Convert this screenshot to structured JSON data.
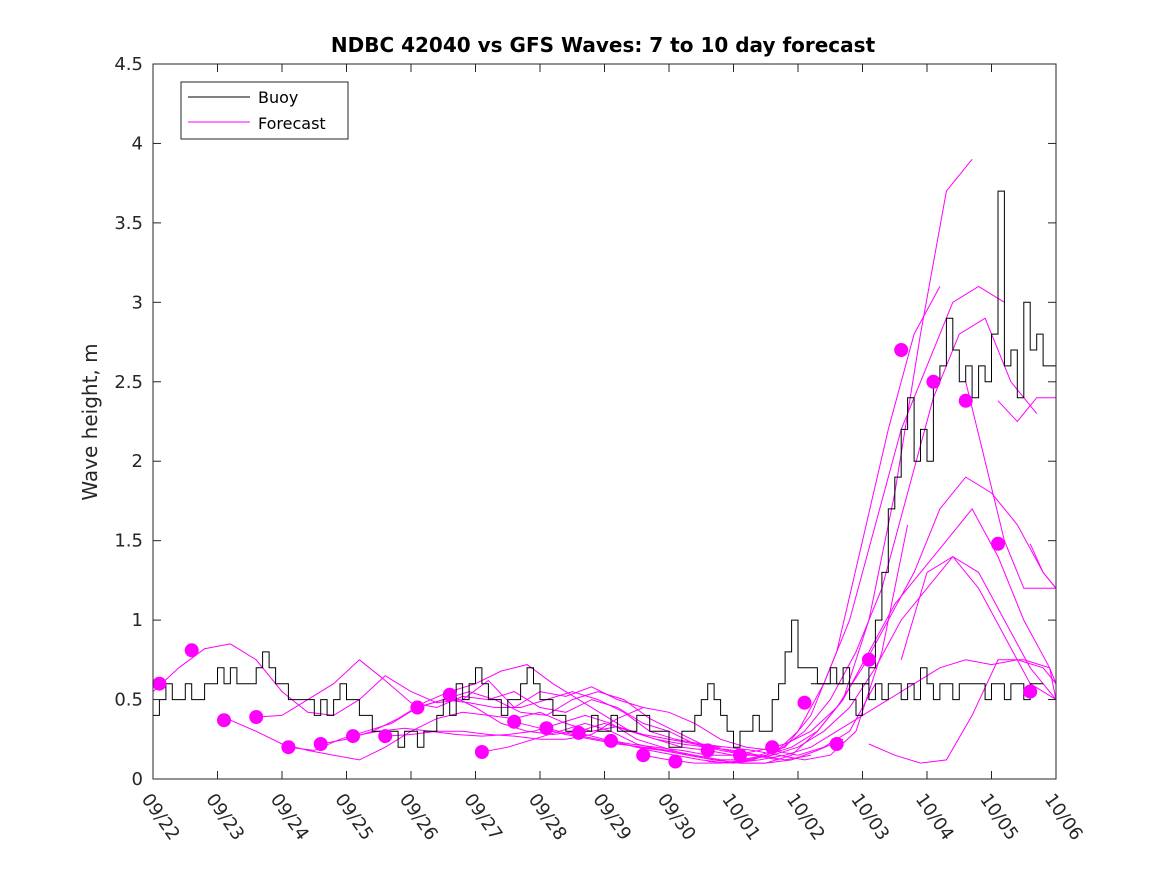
{
  "chart_data": {
    "type": "line",
    "title": "NDBC 42040 vs GFS Waves: 7 to 10 day forecast",
    "xlabel": "",
    "ylabel": "Wave height, m",
    "ylim": [
      0,
      4.5
    ],
    "xlim": [
      0,
      14
    ],
    "yticks": [
      "0",
      "0.5",
      "1",
      "1.5",
      "2",
      "2.5",
      "3",
      "3.5",
      "4",
      "4.5"
    ],
    "xticks": [
      "09/22",
      "09/23",
      "09/24",
      "09/25",
      "09/26",
      "09/27",
      "09/28",
      "09/29",
      "09/30",
      "10/01",
      "10/02",
      "10/03",
      "10/04",
      "10/05",
      "10/06"
    ],
    "x_unit_note": "x values are days after 09/22",
    "legend": {
      "placement": "top-left",
      "entries": [
        {
          "label": "Buoy",
          "color": "#000000"
        },
        {
          "label": "Forecast",
          "color": "#ff00ff"
        }
      ]
    },
    "colors": {
      "buoy": "#000000",
      "forecast": "#ff00ff"
    },
    "buoy": {
      "name": "Buoy",
      "x": [
        0,
        0.1,
        0.2,
        0.3,
        0.4,
        0.5,
        0.6,
        0.7,
        0.8,
        0.9,
        1,
        1.1,
        1.2,
        1.3,
        1.4,
        1.5,
        1.6,
        1.7,
        1.8,
        1.9,
        2,
        2.1,
        2.2,
        2.3,
        2.4,
        2.5,
        2.6,
        2.7,
        2.8,
        2.9,
        3,
        3.1,
        3.2,
        3.3,
        3.4,
        3.5,
        3.6,
        3.7,
        3.8,
        3.9,
        4,
        4.1,
        4.2,
        4.3,
        4.4,
        4.5,
        4.6,
        4.7,
        4.8,
        4.9,
        5,
        5.1,
        5.2,
        5.3,
        5.4,
        5.5,
        5.6,
        5.7,
        5.8,
        5.9,
        6,
        6.1,
        6.2,
        6.3,
        6.4,
        6.5,
        6.6,
        6.7,
        6.8,
        6.9,
        7,
        7.1,
        7.2,
        7.3,
        7.4,
        7.5,
        7.6,
        7.7,
        7.8,
        7.9,
        8,
        8.1,
        8.2,
        8.3,
        8.4,
        8.5,
        8.6,
        8.7,
        8.8,
        8.9,
        9,
        9.1,
        9.2,
        9.3,
        9.4,
        9.5,
        9.6,
        9.7,
        9.8,
        9.9,
        10,
        10.1,
        10.2,
        10.3,
        10.4,
        10.5,
        10.6,
        10.7,
        10.8,
        10.9,
        11,
        11.1,
        11.2,
        11.3,
        11.4,
        11.5,
        11.6,
        11.7,
        11.8,
        11.9,
        12,
        12.1,
        12.2,
        12.3,
        12.4,
        12.5,
        12.6,
        12.7,
        12.8,
        12.9,
        13,
        13.1,
        13.2,
        13.3,
        13.4,
        13.5,
        13.6,
        13.7,
        13.8
      ],
      "values": [
        0.4,
        0.5,
        0.6,
        0.5,
        0.5,
        0.6,
        0.5,
        0.5,
        0.6,
        0.6,
        0.7,
        0.6,
        0.7,
        0.6,
        0.6,
        0.6,
        0.7,
        0.8,
        0.7,
        0.6,
        0.6,
        0.5,
        0.5,
        0.5,
        0.5,
        0.4,
        0.5,
        0.4,
        0.5,
        0.6,
        0.5,
        0.5,
        0.4,
        0.4,
        0.3,
        0.3,
        0.3,
        0.3,
        0.2,
        0.3,
        0.3,
        0.2,
        0.3,
        0.3,
        0.4,
        0.5,
        0.4,
        0.6,
        0.5,
        0.6,
        0.7,
        0.6,
        0.5,
        0.5,
        0.4,
        0.5,
        0.5,
        0.6,
        0.7,
        0.6,
        0.5,
        0.5,
        0.4,
        0.4,
        0.3,
        0.3,
        0.3,
        0.3,
        0.4,
        0.3,
        0.3,
        0.4,
        0.3,
        0.3,
        0.3,
        0.4,
        0.4,
        0.3,
        0.3,
        0.3,
        0.2,
        0.2,
        0.3,
        0.3,
        0.4,
        0.5,
        0.6,
        0.5,
        0.4,
        0.3,
        0.2,
        0.3,
        0.3,
        0.4,
        0.3,
        0.3,
        0.5,
        0.6,
        0.8,
        1.0,
        0.7,
        0.7,
        0.7,
        0.6,
        0.6,
        0.7,
        0.6,
        0.6,
        0.5,
        0.4,
        0.6,
        0.5,
        0.6,
        0.5,
        0.6,
        0.6,
        0.5,
        0.6,
        0.5,
        0.7,
        0.6,
        0.5,
        0.6,
        0.6,
        0.5,
        0.6,
        0.6,
        0.6,
        0.6,
        0.5,
        0.6,
        0.6,
        0.5,
        0.6,
        0.6,
        0.5,
        0.6,
        0.6,
        0.6
      ]
    },
    "buoy_tail": {
      "x": [
        10.2,
        10.3,
        10.4,
        10.5,
        10.6,
        10.7,
        10.8,
        10.9,
        11.0,
        11.1,
        11.2,
        11.3,
        11.4,
        11.5,
        11.6,
        11.7,
        11.8,
        11.9,
        12.0,
        12.1,
        12.2,
        12.3,
        12.4,
        12.5,
        12.6,
        12.7,
        12.8,
        12.9,
        13.0,
        13.1,
        13.2,
        13.3,
        13.4,
        13.5,
        13.6,
        13.7,
        13.8,
        13.9,
        14.0
      ],
      "values": [
        0.6,
        0.6,
        0.6,
        0.6,
        0.6,
        0.7,
        0.6,
        0.6,
        0.6,
        0.7,
        1.0,
        1.3,
        1.7,
        1.9,
        2.2,
        2.4,
        2.0,
        2.2,
        2.0,
        2.5,
        2.6,
        2.9,
        2.7,
        2.5,
        2.6,
        2.4,
        2.6,
        2.5,
        2.8,
        3.7,
        2.6,
        2.7,
        2.4,
        3.0,
        2.7,
        2.8,
        2.6,
        2.6,
        2.6
      ]
    },
    "series": [
      {
        "x": [
          0.0,
          0.4,
          0.8,
          1.2,
          1.6,
          2.0,
          2.4,
          2.8,
          3.2,
          3.6,
          4.0,
          4.4,
          4.8,
          5.2,
          5.6,
          6.0,
          6.4,
          6.8,
          7.2,
          7.6
        ],
        "values": [
          0.55,
          0.7,
          0.82,
          0.85,
          0.75,
          0.55,
          0.42,
          0.4,
          0.5,
          0.65,
          0.55,
          0.48,
          0.5,
          0.62,
          0.45,
          0.55,
          0.52,
          0.58,
          0.5,
          0.45
        ]
      },
      {
        "x": [
          1.2,
          1.6,
          2.0,
          2.4,
          2.8,
          3.2,
          3.6,
          4.0,
          4.4,
          4.8,
          5.2,
          5.6,
          6.0,
          6.4,
          6.8,
          7.2,
          7.6,
          8.0,
          8.4,
          8.8
        ],
        "values": [
          0.37,
          0.3,
          0.22,
          0.18,
          0.15,
          0.12,
          0.2,
          0.3,
          0.38,
          0.42,
          0.4,
          0.38,
          0.42,
          0.35,
          0.3,
          0.33,
          0.28,
          0.25,
          0.22,
          0.2
        ]
      },
      {
        "x": [
          1.6,
          2.0,
          2.4,
          2.8,
          3.2,
          3.6,
          4.0,
          4.4,
          4.8,
          5.2,
          5.6,
          6.0,
          6.4,
          6.8,
          7.2,
          7.6,
          8.0,
          8.4,
          8.8,
          9.2
        ],
        "values": [
          0.39,
          0.4,
          0.5,
          0.6,
          0.75,
          0.62,
          0.48,
          0.45,
          0.52,
          0.5,
          0.55,
          0.45,
          0.42,
          0.5,
          0.45,
          0.35,
          0.3,
          0.22,
          0.18,
          0.15
        ]
      },
      {
        "x": [
          2.1,
          2.5,
          2.9,
          3.3,
          3.7,
          4.1,
          4.5,
          4.9,
          5.3,
          5.7,
          6.1,
          6.5,
          6.9,
          7.3,
          7.7,
          8.1,
          8.5,
          8.9,
          9.3,
          9.7
        ],
        "values": [
          0.2,
          0.18,
          0.25,
          0.3,
          0.35,
          0.45,
          0.5,
          0.55,
          0.5,
          0.42,
          0.4,
          0.5,
          0.55,
          0.5,
          0.38,
          0.3,
          0.22,
          0.18,
          0.15,
          0.12
        ]
      },
      {
        "x": [
          2.6,
          3.0,
          3.4,
          3.8,
          4.2,
          4.6,
          5.0,
          5.4,
          5.8,
          6.2,
          6.6,
          7.0,
          7.4,
          7.8,
          8.2,
          8.6,
          9.0,
          9.4,
          9.8,
          10.2
        ],
        "values": [
          0.22,
          0.25,
          0.3,
          0.38,
          0.48,
          0.55,
          0.6,
          0.68,
          0.72,
          0.6,
          0.5,
          0.4,
          0.3,
          0.25,
          0.22,
          0.2,
          0.18,
          0.15,
          0.12,
          0.15
        ]
      },
      {
        "x": [
          3.1,
          3.5,
          3.9,
          4.3,
          4.7,
          5.1,
          5.5,
          5.9,
          6.3,
          6.7,
          7.1,
          7.5,
          7.9,
          8.3,
          8.7,
          9.1,
          9.5,
          9.9,
          10.3,
          10.7
        ],
        "values": [
          0.27,
          0.3,
          0.32,
          0.3,
          0.28,
          0.27,
          0.28,
          0.3,
          0.35,
          0.4,
          0.35,
          0.25,
          0.2,
          0.15,
          0.12,
          0.1,
          0.1,
          0.12,
          0.18,
          0.25
        ]
      },
      {
        "x": [
          3.6,
          4.0,
          4.4,
          4.8,
          5.2,
          5.6,
          6.0,
          6.4,
          6.8,
          7.2,
          7.6,
          8.0,
          8.4,
          8.8,
          9.2,
          9.6,
          10.0,
          10.4,
          10.8,
          11.2
        ],
        "values": [
          0.27,
          0.28,
          0.3,
          0.3,
          0.28,
          0.27,
          0.25,
          0.25,
          0.28,
          0.38,
          0.45,
          0.42,
          0.35,
          0.25,
          0.2,
          0.18,
          0.15,
          0.2,
          0.3,
          0.6
        ]
      },
      {
        "x": [
          4.1,
          4.5,
          4.9,
          5.3,
          5.7,
          6.1,
          6.5,
          6.9,
          7.3,
          7.7,
          8.1,
          8.5,
          8.9,
          9.3,
          9.7,
          10.1,
          10.5,
          10.9,
          11.3,
          11.7
        ],
        "values": [
          0.45,
          0.5,
          0.48,
          0.45,
          0.45,
          0.5,
          0.55,
          0.5,
          0.42,
          0.3,
          0.25,
          0.22,
          0.2,
          0.18,
          0.15,
          0.12,
          0.15,
          0.3,
          0.8,
          1.6
        ]
      },
      {
        "x": [
          4.6,
          5.0,
          5.4,
          5.8,
          6.2,
          6.6,
          7.0,
          7.4,
          7.8,
          8.2,
          8.6,
          9.0,
          9.4,
          9.8,
          10.2,
          10.6,
          11.0,
          11.4,
          11.8,
          12.2
        ],
        "values": [
          0.53,
          0.45,
          0.35,
          0.3,
          0.28,
          0.3,
          0.35,
          0.3,
          0.25,
          0.2,
          0.18,
          0.15,
          0.15,
          0.2,
          0.4,
          0.8,
          1.5,
          2.2,
          2.8,
          3.1
        ]
      },
      {
        "x": [
          5.1,
          5.5,
          5.9,
          6.3,
          6.7,
          7.1,
          7.5,
          7.9,
          8.3,
          8.7,
          9.1,
          9.5,
          9.9,
          10.3,
          10.7,
          11.1,
          11.5,
          11.9,
          12.3,
          12.7
        ],
        "values": [
          0.17,
          0.2,
          0.25,
          0.3,
          0.35,
          0.3,
          0.22,
          0.18,
          0.15,
          0.12,
          0.1,
          0.1,
          0.15,
          0.3,
          0.5,
          1.0,
          1.8,
          2.8,
          3.7,
          3.9
        ]
      },
      {
        "x": [
          5.6,
          6.0,
          6.4,
          6.8,
          7.2,
          7.6,
          8.0,
          8.4,
          8.8,
          9.2,
          9.6,
          10.0,
          10.4,
          10.8,
          11.2,
          11.6,
          12.0,
          12.4,
          12.8,
          13.2
        ],
        "values": [
          0.36,
          0.32,
          0.28,
          0.25,
          0.22,
          0.2,
          0.18,
          0.15,
          0.12,
          0.12,
          0.15,
          0.3,
          0.6,
          1.0,
          1.6,
          2.2,
          2.6,
          3.0,
          3.1,
          3.0
        ]
      },
      {
        "x": [
          6.1,
          6.5,
          6.9,
          7.3,
          7.7,
          8.1,
          8.5,
          8.9,
          9.3,
          9.7,
          10.1,
          10.5,
          10.9,
          11.3,
          11.7,
          12.1,
          12.5,
          12.9,
          13.3,
          13.7
        ],
        "values": [
          0.32,
          0.28,
          0.25,
          0.22,
          0.18,
          0.15,
          0.12,
          0.1,
          0.12,
          0.18,
          0.3,
          0.5,
          0.8,
          1.2,
          1.8,
          2.4,
          2.8,
          2.9,
          2.5,
          2.3
        ]
      },
      {
        "x": [
          6.6,
          7.0,
          7.4,
          7.8,
          8.2,
          8.6,
          9.0,
          9.4,
          9.8,
          10.2,
          10.6,
          11.0,
          11.4,
          11.8,
          12.2,
          12.6,
          13.0,
          13.4,
          13.8,
          14.0
        ],
        "values": [
          0.29,
          0.25,
          0.22,
          0.2,
          0.18,
          0.15,
          0.15,
          0.18,
          0.22,
          0.3,
          0.45,
          0.7,
          1.0,
          1.3,
          1.7,
          1.9,
          1.8,
          1.6,
          1.3,
          1.2
        ]
      },
      {
        "x": [
          7.1,
          7.5,
          7.9,
          8.3,
          8.7,
          9.1,
          9.5,
          9.9,
          10.3,
          10.7,
          11.1,
          11.5,
          11.9,
          12.3,
          12.7,
          13.1,
          13.5,
          13.9,
          14.0
        ],
        "values": [
          0.24,
          0.2,
          0.18,
          0.15,
          0.12,
          0.12,
          0.15,
          0.2,
          0.3,
          0.5,
          0.8,
          1.1,
          1.3,
          1.5,
          1.7,
          1.4,
          1.0,
          0.7,
          0.6
        ]
      },
      {
        "x": [
          7.6,
          8.0,
          8.4,
          8.8,
          9.2,
          9.6,
          10.0,
          10.4,
          10.8,
          11.2,
          11.6,
          12.0,
          12.4,
          12.8,
          13.2,
          13.6,
          14.0
        ],
        "values": [
          0.15,
          0.12,
          0.1,
          0.1,
          0.12,
          0.15,
          0.2,
          0.3,
          0.45,
          0.7,
          1.0,
          1.2,
          1.4,
          1.3,
          1.0,
          0.7,
          0.5
        ]
      },
      {
        "x": [
          8.6,
          9.0,
          9.4,
          9.8,
          10.2,
          10.6,
          11.0,
          11.4,
          11.8,
          12.2,
          12.6,
          13.0,
          13.4,
          13.8,
          14.0
        ],
        "values": [
          0.11,
          0.1,
          0.12,
          0.15,
          0.2,
          0.3,
          0.4,
          0.5,
          0.6,
          0.7,
          0.75,
          0.72,
          0.75,
          0.7,
          0.6
        ]
      },
      {
        "x": [
          11.1,
          11.5,
          11.9,
          12.3,
          12.7,
          13.1,
          13.5,
          13.9,
          14.0
        ],
        "values": [
          0.22,
          0.15,
          0.1,
          0.12,
          0.4,
          0.75,
          0.75,
          0.7,
          0.5
        ]
      },
      {
        "x": [
          11.6,
          12.0,
          12.4,
          12.8,
          13.2,
          13.6,
          14.0
        ],
        "values": [
          0.75,
          1.3,
          1.4,
          1.2,
          0.9,
          0.6,
          0.5
        ]
      },
      {
        "x": [
          12.6,
          12.9,
          13.2,
          13.5,
          13.8,
          14.0
        ],
        "values": [
          2.5,
          2.0,
          1.5,
          1.2,
          1.2,
          1.2
        ]
      },
      {
        "x": [
          13.1,
          13.4,
          13.7,
          14.0
        ],
        "values": [
          2.38,
          2.25,
          2.4,
          2.4
        ]
      },
      {
        "x": [
          13.6,
          13.8,
          14.0
        ],
        "values": [
          1.48,
          1.3,
          1.2
        ]
      }
    ],
    "forecast_start_points": {
      "x": [
        0.1,
        0.6,
        1.1,
        1.6,
        2.1,
        2.6,
        3.1,
        3.6,
        4.1,
        4.6,
        5.1,
        5.6,
        6.1,
        6.6,
        7.1,
        7.6,
        8.1,
        8.6,
        9.1,
        9.6,
        10.1,
        10.6,
        11.1,
        11.6,
        12.1,
        12.6,
        13.1,
        13.6
      ],
      "values": [
        0.6,
        0.81,
        0.37,
        0.39,
        0.2,
        0.22,
        0.27,
        0.27,
        0.45,
        0.53,
        0.17,
        0.36,
        0.32,
        0.29,
        0.24,
        0.15,
        0.11,
        0.18,
        0.15,
        0.2,
        0.48,
        0.22,
        0.75,
        2.7,
        2.5,
        2.38,
        1.48,
        0.55
      ]
    }
  }
}
